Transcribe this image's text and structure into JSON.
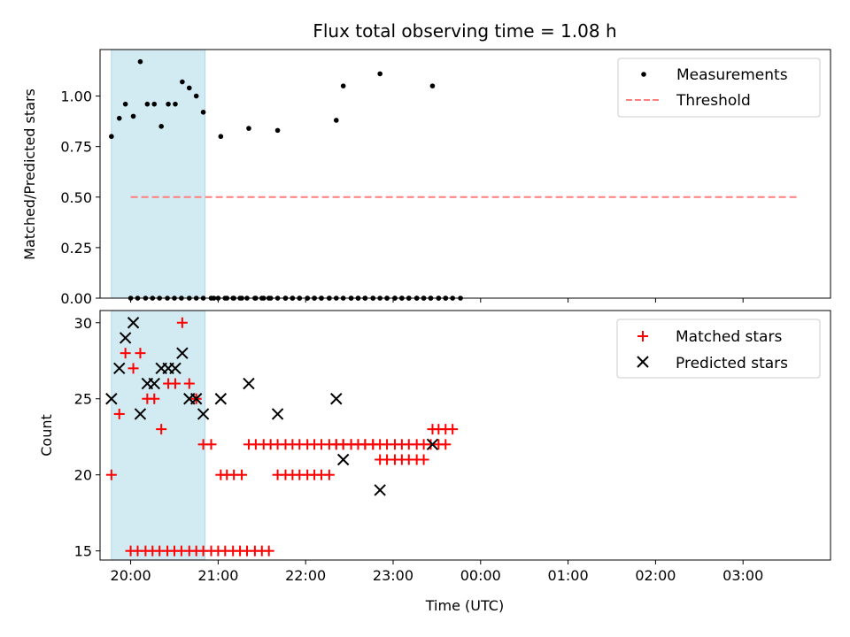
{
  "chart_data": [
    {
      "type": "scatter",
      "title": "Flux total observing time = 1.08 h",
      "xlabel": "",
      "ylabel": "Matched/Predicted stars",
      "xlim": [
        -0.35,
        8.0
      ],
      "ylim": [
        0.0,
        1.23
      ],
      "yticks": [
        "0.00",
        "0.25",
        "0.50",
        "0.75",
        "1.00"
      ],
      "grid": false,
      "legend_position": "top-right",
      "highlight_span": {
        "x_start": -0.22,
        "x_end": 0.85,
        "color": "#add8e6"
      },
      "series": [
        {
          "name": "Measurements",
          "color": "#000000",
          "marker": "dot",
          "points": [
            [
              0.0,
              0
            ],
            [
              0.08,
              0
            ],
            [
              0.17,
              0
            ],
            [
              0.25,
              0
            ],
            [
              0.33,
              0
            ],
            [
              0.42,
              0
            ],
            [
              0.5,
              0
            ],
            [
              0.58,
              0
            ],
            [
              0.67,
              0
            ],
            [
              0.75,
              0
            ],
            [
              0.83,
              0
            ],
            [
              0.92,
              0
            ],
            [
              1.0,
              0
            ],
            [
              1.08,
              0
            ],
            [
              1.17,
              0
            ],
            [
              1.25,
              0
            ],
            [
              1.33,
              0
            ],
            [
              1.42,
              0
            ],
            [
              1.5,
              0
            ],
            [
              1.58,
              0
            ],
            [
              1.68,
              0.83
            ],
            [
              1.77,
              0
            ],
            [
              1.85,
              0
            ],
            [
              1.93,
              0
            ],
            [
              2.02,
              0
            ],
            [
              2.1,
              0
            ],
            [
              2.18,
              0
            ],
            [
              2.27,
              0
            ],
            [
              2.35,
              0.88
            ],
            [
              2.43,
              1.05
            ],
            [
              2.52,
              0
            ],
            [
              2.6,
              0
            ],
            [
              2.68,
              0
            ],
            [
              2.77,
              0
            ],
            [
              2.85,
              1.11
            ],
            [
              2.93,
              0
            ],
            [
              3.02,
              0
            ],
            [
              3.1,
              0
            ],
            [
              3.18,
              0
            ],
            [
              3.27,
              0
            ],
            [
              3.35,
              0
            ],
            [
              3.43,
              0
            ],
            [
              3.45,
              1.05
            ],
            [
              3.52,
              0
            ],
            [
              3.6,
              0
            ],
            [
              3.68,
              0
            ],
            [
              3.77,
              0
            ],
            [
              -0.22,
              0.8
            ],
            [
              -0.13,
              0.89
            ],
            [
              -0.06,
              0.96
            ],
            [
              0.03,
              0.9
            ],
            [
              0.11,
              1.17
            ],
            [
              0.19,
              0.96
            ],
            [
              0.27,
              0.96
            ],
            [
              0.35,
              0.85
            ],
            [
              0.43,
              0.96
            ],
            [
              0.51,
              0.96
            ],
            [
              0.59,
              1.07
            ],
            [
              0.67,
              1.04
            ],
            [
              0.75,
              1.0
            ],
            [
              0.83,
              0.92
            ],
            [
              0.95,
              0
            ],
            [
              1.03,
              0.8
            ],
            [
              1.1,
              0
            ],
            [
              1.18,
              0
            ],
            [
              1.27,
              0
            ],
            [
              1.35,
              0.84
            ],
            [
              1.43,
              0
            ],
            [
              1.52,
              0
            ],
            [
              1.6,
              0
            ],
            [
              1.68,
              0
            ],
            [
              1.77,
              0
            ],
            [
              1.85,
              0
            ],
            [
              1.93,
              0
            ],
            [
              2.02,
              0
            ],
            [
              2.1,
              0
            ],
            [
              2.18,
              0
            ],
            [
              2.27,
              0
            ],
            [
              2.35,
              0
            ],
            [
              2.43,
              0
            ],
            [
              2.52,
              0
            ],
            [
              2.6,
              0
            ],
            [
              2.68,
              0
            ],
            [
              2.77,
              0
            ],
            [
              2.85,
              0
            ],
            [
              2.93,
              0
            ],
            [
              3.02,
              0
            ],
            [
              3.1,
              0
            ],
            [
              3.18,
              0
            ],
            [
              3.27,
              0
            ],
            [
              3.35,
              0
            ],
            [
              3.43,
              0
            ],
            [
              3.52,
              0
            ],
            [
              3.6,
              0
            ]
          ]
        },
        {
          "name": "Threshold",
          "color": "#ff7f7f",
          "style": "dashed",
          "line": [
            [
              0.0,
              0.5
            ],
            [
              7.62,
              0.5
            ]
          ]
        }
      ]
    },
    {
      "type": "scatter",
      "title": "",
      "xlabel": "Time (UTC)",
      "ylabel": "Count",
      "xlim": [
        -0.35,
        8.0
      ],
      "ylim": [
        14.4,
        30.8
      ],
      "yticks": [
        "15",
        "20",
        "25",
        "30"
      ],
      "xticks": [
        "20:00",
        "21:00",
        "22:00",
        "23:00",
        "00:00",
        "01:00",
        "02:00",
        "03:00"
      ],
      "grid": false,
      "legend_position": "top-right",
      "highlight_span": {
        "x_start": -0.22,
        "x_end": 0.85,
        "color": "#add8e6"
      },
      "series": [
        {
          "name": "Matched stars",
          "color": "#ff0000",
          "marker": "plus",
          "points": [
            [
              0.0,
              15
            ],
            [
              0.08,
              15
            ],
            [
              0.17,
              15
            ],
            [
              0.25,
              15
            ],
            [
              0.33,
              15
            ],
            [
              0.42,
              15
            ],
            [
              0.5,
              15
            ],
            [
              0.58,
              15
            ],
            [
              0.67,
              15
            ],
            [
              0.75,
              15
            ],
            [
              0.83,
              15
            ],
            [
              0.92,
              15
            ],
            [
              1.0,
              15
            ],
            [
              1.08,
              15
            ],
            [
              1.17,
              15
            ],
            [
              1.25,
              15
            ],
            [
              1.33,
              15
            ],
            [
              1.42,
              15
            ],
            [
              1.5,
              15
            ],
            [
              1.58,
              15
            ],
            [
              1.68,
              20
            ],
            [
              1.77,
              20
            ],
            [
              1.85,
              20
            ],
            [
              1.93,
              20
            ],
            [
              2.02,
              20
            ],
            [
              2.1,
              20
            ],
            [
              2.18,
              20
            ],
            [
              2.27,
              20
            ],
            [
              2.35,
              22
            ],
            [
              2.43,
              22
            ],
            [
              2.52,
              22
            ],
            [
              2.6,
              22
            ],
            [
              2.68,
              22
            ],
            [
              2.77,
              22
            ],
            [
              2.85,
              21
            ],
            [
              2.93,
              21
            ],
            [
              3.02,
              21
            ],
            [
              3.1,
              21
            ],
            [
              3.18,
              21
            ],
            [
              3.27,
              21
            ],
            [
              3.35,
              21
            ],
            [
              3.45,
              23
            ],
            [
              3.52,
              23
            ],
            [
              3.6,
              23
            ],
            [
              3.68,
              23
            ],
            [
              -0.22,
              20
            ],
            [
              -0.13,
              24
            ],
            [
              -0.06,
              28
            ],
            [
              0.03,
              27
            ],
            [
              0.11,
              28
            ],
            [
              0.19,
              25
            ],
            [
              0.27,
              25
            ],
            [
              0.35,
              23
            ],
            [
              0.43,
              26
            ],
            [
              0.51,
              26
            ],
            [
              0.59,
              30
            ],
            [
              0.67,
              26
            ],
            [
              0.75,
              25
            ],
            [
              0.83,
              22
            ],
            [
              0.92,
              22
            ],
            [
              1.03,
              20
            ],
            [
              1.1,
              20
            ],
            [
              1.18,
              20
            ],
            [
              1.27,
              20
            ],
            [
              1.35,
              22
            ],
            [
              1.43,
              22
            ],
            [
              1.52,
              22
            ],
            [
              1.6,
              22
            ],
            [
              1.68,
              22
            ],
            [
              1.77,
              22
            ],
            [
              1.85,
              22
            ],
            [
              1.93,
              22
            ],
            [
              2.02,
              22
            ],
            [
              2.1,
              22
            ],
            [
              2.18,
              22
            ],
            [
              2.27,
              22
            ],
            [
              2.35,
              22
            ],
            [
              2.43,
              22
            ],
            [
              2.52,
              22
            ],
            [
              2.6,
              22
            ],
            [
              2.68,
              22
            ],
            [
              2.77,
              22
            ],
            [
              2.85,
              22
            ],
            [
              2.93,
              22
            ],
            [
              3.02,
              22
            ],
            [
              3.1,
              22
            ],
            [
              3.18,
              22
            ],
            [
              3.27,
              22
            ],
            [
              3.35,
              22
            ],
            [
              3.43,
              22
            ],
            [
              3.52,
              22
            ],
            [
              3.6,
              22
            ]
          ]
        },
        {
          "name": "Predicted stars",
          "color": "#000000",
          "marker": "x",
          "points": [
            [
              1.68,
              24
            ],
            [
              2.35,
              25
            ],
            [
              2.43,
              21
            ],
            [
              2.85,
              19
            ],
            [
              3.45,
              22
            ],
            [
              -0.22,
              25
            ],
            [
              -0.13,
              27
            ],
            [
              -0.06,
              29
            ],
            [
              0.03,
              30
            ],
            [
              0.11,
              24
            ],
            [
              0.19,
              26
            ],
            [
              0.27,
              26
            ],
            [
              0.35,
              27
            ],
            [
              0.43,
              27
            ],
            [
              0.51,
              27
            ],
            [
              0.59,
              28
            ],
            [
              0.67,
              25
            ],
            [
              0.75,
              25
            ],
            [
              0.83,
              24
            ],
            [
              1.03,
              25
            ],
            [
              1.35,
              26
            ]
          ]
        }
      ]
    }
  ]
}
